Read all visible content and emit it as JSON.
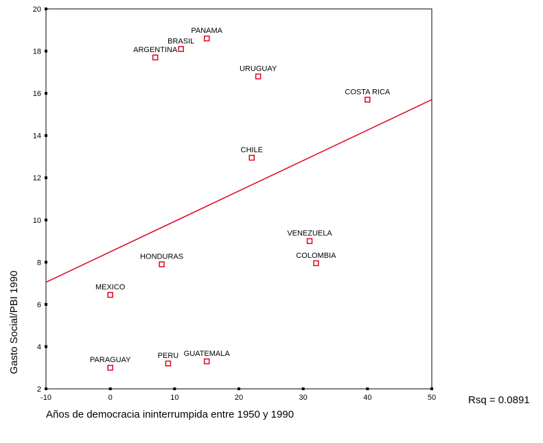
{
  "chart_data": {
    "type": "scatter",
    "xlabel": "Años de democracia ininterrumpida entre 1950 y 1990",
    "ylabel": "Gasto Social/PBI 1990",
    "xlim": [
      -10,
      50
    ],
    "ylim": [
      2,
      20
    ],
    "xticks": [
      -10,
      0,
      10,
      20,
      30,
      40,
      50
    ],
    "yticks": [
      2,
      4,
      6,
      8,
      10,
      12,
      14,
      16,
      18,
      20
    ],
    "grid": false,
    "marker_color": "#e0001b",
    "fit_color": "#e0001b",
    "points": [
      {
        "label": "PANAMA",
        "x": 15,
        "y": 18.6
      },
      {
        "label": "BRASIL",
        "x": 11,
        "y": 18.1
      },
      {
        "label": "ARGENTINA",
        "x": 7,
        "y": 17.7
      },
      {
        "label": "URUGUAY",
        "x": 23,
        "y": 16.8
      },
      {
        "label": "COSTA RICA",
        "x": 40,
        "y": 15.7
      },
      {
        "label": "CHILE",
        "x": 22,
        "y": 12.95
      },
      {
        "label": "VENEZUELA",
        "x": 31,
        "y": 9.0
      },
      {
        "label": "COLOMBIA",
        "x": 32,
        "y": 7.95
      },
      {
        "label": "HONDURAS",
        "x": 8,
        "y": 7.9
      },
      {
        "label": "MEXICO",
        "x": 0,
        "y": 6.45
      },
      {
        "label": "PARAGUAY",
        "x": 0,
        "y": 3.0
      },
      {
        "label": "PERU",
        "x": 9,
        "y": 3.2
      },
      {
        "label": "GUATEMALA",
        "x": 15,
        "y": 3.3
      }
    ],
    "fit_line": {
      "x": [
        -10,
        50
      ],
      "y": [
        7.05,
        15.7
      ]
    },
    "rsq_label": "Rsq = 0.0891"
  }
}
